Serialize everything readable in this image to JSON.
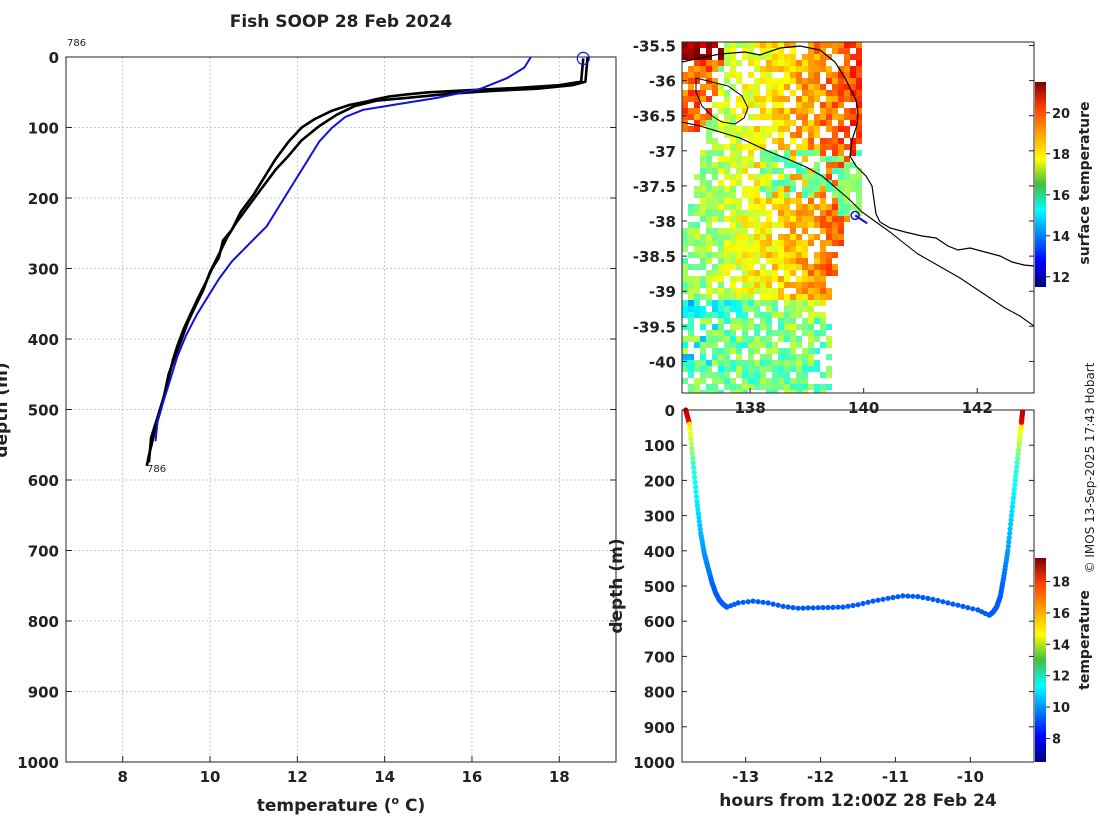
{
  "figure_title": "Fish SOOP 28 Feb 2024",
  "credit": "© IMOS 13-Sep-2025 17:43 Hobart",
  "colors": {
    "profile_black": "#000000",
    "profile_blue": "#1010e0",
    "land_white": "#ffffff",
    "coast": "#000000"
  },
  "chart_data": [
    {
      "name": "temperature-depth-profile",
      "type": "line",
      "title": "Fish SOOP 28 Feb 2024",
      "xlabel": "temperature (",
      "xlabel_sup": "o",
      "xlabel_tail": " C)",
      "ylabel": "depth (m)",
      "xlim": [
        6.7,
        19.3
      ],
      "ylim": [
        0,
        1000
      ],
      "y_inverted": true,
      "xticks": [
        "8",
        "10",
        "12",
        "14",
        "16",
        "18"
      ],
      "yticks": [
        "0",
        "100",
        "200",
        "300",
        "400",
        "500",
        "600",
        "700",
        "800",
        "900",
        "1000"
      ],
      "grid": true,
      "annotations": [
        {
          "text": "786",
          "x": 6.7,
          "y": -20
        },
        {
          "text": "786",
          "x": 8.55,
          "y": 582
        }
      ],
      "start_marker": {
        "x": 18.55,
        "y": 2
      },
      "series": [
        {
          "name": "profile-descent",
          "color": "black",
          "x": [
            18.55,
            18.5,
            18.0,
            17.0,
            16.0,
            15.0,
            14.5,
            14.1,
            13.8,
            13.6,
            13.2,
            12.8,
            12.4,
            12.1,
            11.8,
            11.5,
            11.2,
            11.0,
            10.7,
            10.5,
            10.3,
            10.2,
            10.05,
            9.9,
            9.7,
            9.55,
            9.4,
            9.25,
            9.15,
            9.05,
            8.95,
            8.85,
            8.75,
            8.68,
            8.6,
            8.55
          ],
          "y": [
            2,
            35,
            40,
            44,
            47,
            50,
            53,
            56,
            60,
            63,
            68,
            76,
            88,
            100,
            120,
            145,
            175,
            195,
            220,
            245,
            260,
            285,
            300,
            320,
            345,
            365,
            385,
            410,
            430,
            455,
            480,
            505,
            525,
            545,
            565,
            580
          ]
        },
        {
          "name": "profile-ascent",
          "color": "black",
          "x": [
            8.6,
            8.65,
            8.8,
            8.95,
            9.05,
            9.2,
            9.35,
            9.5,
            9.65,
            9.85,
            10.0,
            10.2,
            10.4,
            10.6,
            10.9,
            11.2,
            11.5,
            11.8,
            12.1,
            12.5,
            12.9,
            13.3,
            13.8,
            14.5,
            15.5,
            16.5,
            17.5,
            18.3,
            18.6,
            18.65
          ],
          "y": [
            575,
            540,
            510,
            480,
            450,
            425,
            400,
            375,
            355,
            330,
            305,
            280,
            255,
            235,
            210,
            185,
            160,
            140,
            118,
            98,
            82,
            70,
            62,
            58,
            52,
            48,
            45,
            40,
            35,
            0
          ]
        },
        {
          "name": "profile-reference",
          "color": "blue",
          "x": [
            8.75,
            8.8,
            8.95,
            9.1,
            9.25,
            9.45,
            9.7,
            9.95,
            10.2,
            10.5,
            10.9,
            11.3,
            11.6,
            11.9,
            12.2,
            12.5,
            12.8,
            13.1,
            13.5,
            14.2,
            15.2,
            16.2,
            16.8,
            17.2,
            17.35
          ],
          "y": [
            545,
            515,
            485,
            455,
            425,
            395,
            365,
            340,
            315,
            290,
            265,
            240,
            210,
            180,
            150,
            120,
            100,
            85,
            75,
            68,
            58,
            45,
            30,
            15,
            0
          ]
        }
      ]
    },
    {
      "name": "surface-temperature-map",
      "type": "heatmap",
      "colorbar_label": "surface temperature",
      "xlim": [
        136.8,
        143.0
      ],
      "ylim": [
        -40.45,
        -35.45
      ],
      "xticks": [
        "138",
        "140",
        "142"
      ],
      "yticks": [
        "-35.5",
        "-36",
        "-36.5",
        "-37",
        "-37.5",
        "-38",
        "-38.5",
        "-39",
        "-39.5",
        "-40"
      ],
      "colorbar_ticks": [
        "12",
        "14",
        "16",
        "18",
        "20"
      ],
      "clim": [
        11.5,
        21.5
      ],
      "track_marker": {
        "lon": 139.85,
        "lat": -37.92
      }
    },
    {
      "name": "depth-time-section",
      "type": "scatter",
      "xlabel": "hours from 12:00Z 28 Feb 24",
      "ylabel": "depth (m)",
      "colorbar_label": "temperature",
      "xlim": [
        -13.85,
        -9.15
      ],
      "ylim": [
        0,
        1000
      ],
      "y_inverted": true,
      "xticks": [
        "-13",
        "-12",
        "-11",
        "-10"
      ],
      "yticks": [
        "0",
        "100",
        "200",
        "300",
        "400",
        "500",
        "600",
        "700",
        "800",
        "900",
        "1000"
      ],
      "colorbar_ticks": [
        "8",
        "10",
        "12",
        "14",
        "16",
        "18"
      ],
      "clim": [
        6.5,
        19.5
      ],
      "series": [
        {
          "name": "descent",
          "hours": [
            -13.8,
            -13.75,
            -13.7,
            -13.65,
            -13.6,
            -13.55,
            -13.5,
            -13.45,
            -13.4,
            -13.35,
            -13.3,
            -13.25
          ],
          "depth": [
            0,
            40,
            150,
            260,
            350,
            410,
            450,
            490,
            520,
            540,
            552,
            560
          ]
        },
        {
          "name": "bottom",
          "hours": [
            -13.25,
            -13.1,
            -12.9,
            -12.7,
            -12.5,
            -12.3,
            -12.1,
            -11.9,
            -11.7,
            -11.5,
            -11.3,
            -11.1,
            -10.9,
            -10.7,
            -10.5,
            -10.3,
            -10.1,
            -9.9,
            -9.75
          ],
          "depth": [
            560,
            548,
            543,
            548,
            558,
            563,
            562,
            561,
            560,
            553,
            543,
            535,
            528,
            530,
            538,
            548,
            558,
            568,
            583
          ]
        },
        {
          "name": "ascent",
          "hours": [
            -9.75,
            -9.7,
            -9.65,
            -9.6,
            -9.55,
            -9.5,
            -9.45,
            -9.4,
            -9.35,
            -9.32,
            -9.3
          ],
          "depth": [
            583,
            575,
            560,
            530,
            470,
            400,
            300,
            200,
            100,
            40,
            0
          ]
        }
      ]
    }
  ]
}
